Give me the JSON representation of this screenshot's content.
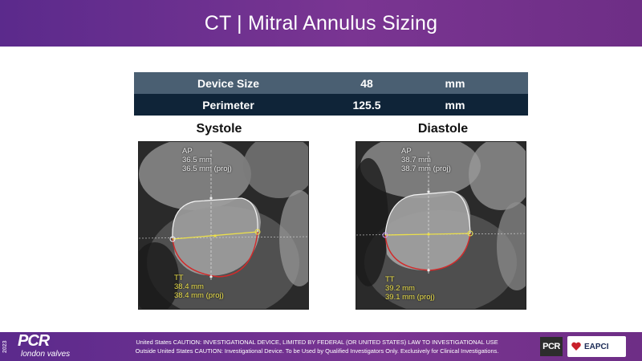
{
  "header": {
    "title": "CT | Mitral Annulus Sizing"
  },
  "table": {
    "rows": [
      {
        "label": "Device Size",
        "value": "48",
        "unit": "mm"
      },
      {
        "label": "Perimeter",
        "value": "125.5",
        "unit": "mm"
      }
    ]
  },
  "panels": [
    {
      "title": "Systole",
      "ap": {
        "label": "AP",
        "mm": "36.5 mm",
        "proj": "36.5 mm (proj)"
      },
      "tt": {
        "label": "TT",
        "mm": "38.4 mm",
        "proj": "38.4 mm (proj)"
      }
    },
    {
      "title": "Diastole",
      "ap": {
        "label": "AP",
        "mm": "38.7 mm",
        "proj": "38.7 mm (proj)"
      },
      "tt": {
        "label": "TT",
        "mm": "39.2 mm",
        "proj": "39.1 mm (proj)"
      }
    }
  ],
  "footer": {
    "year": "2023",
    "brand": "PCR",
    "brand_sub": "london valves",
    "caution_line1": "United States CAUTION: INVESTIGATIONAL DEVICE, LIMITED BY FEDERAL (OR UNITED STATES) LAW TO INVESTIGATIONAL USE",
    "caution_line2": "Outside United States CAUTION: Investigational Device. To be Used by Qualified Investigators Only. Exclusively for Clinical Investigations.",
    "logo_small": "PCR",
    "eapci": "EAPCI"
  },
  "colors": {
    "banner_purple": "#6e2e86",
    "table_row1": "#4a5f72",
    "table_row2": "#0f2438",
    "tt_yellow": "#ece04a",
    "contour_red": "#d22a2a"
  }
}
